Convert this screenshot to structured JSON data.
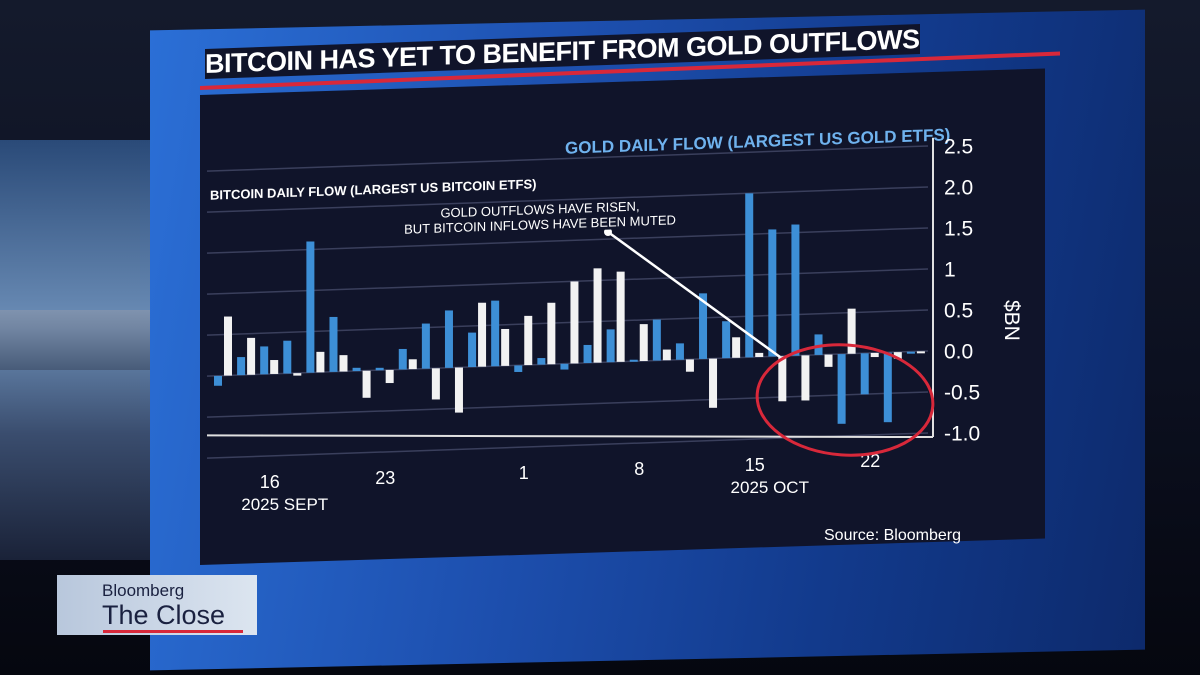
{
  "broadcast": {
    "logo_line1": "Bloomberg",
    "logo_line2": "The Close"
  },
  "colors": {
    "gold": "#3d8fd6",
    "bitcoin": "#f2f2f2",
    "accent_red": "#d8283a"
  },
  "chart_data": {
    "type": "bar",
    "title": "BITCOIN HAS YET TO BENEFIT FROM GOLD OUTFLOWS",
    "ylabel": "$BN",
    "ylim": [
      -1.0,
      2.5
    ],
    "yticks": [
      "2.5",
      "2.0",
      "1.5",
      "1",
      "0.5",
      "0.0",
      "-0.5",
      "-1.0"
    ],
    "ytick_values": [
      2.5,
      2.0,
      1.5,
      1,
      0.5,
      0,
      -0.5,
      -1.0
    ],
    "grid": true,
    "legend": "top",
    "series": [
      {
        "name": "BITCOIN DAILY FLOW (LARGEST US BITCOIN ETFS)",
        "values": [
          0.72,
          0.45,
          0.17,
          -0.03,
          0.25,
          0.2,
          -0.33,
          -0.16,
          0.12,
          -0.38,
          -0.55,
          0.78,
          0.45,
          0.6,
          0.75,
          1.0,
          1.15,
          1.1,
          0.45,
          0.13,
          -0.15,
          -0.6,
          0.25,
          0.05,
          -0.55,
          -0.55,
          -0.15,
          0.55,
          -0.05,
          -0.08,
          -0.02
        ]
      },
      {
        "name": "GOLD DAILY FLOW (LARGEST US GOLD ETFS)",
        "values": [
          -0.12,
          0.22,
          0.34,
          0.4,
          1.6,
          0.67,
          0.04,
          0.03,
          0.25,
          0.55,
          0.7,
          0.42,
          0.8,
          -0.08,
          0.08,
          -0.07,
          0.22,
          0.4,
          0.02,
          0.5,
          0.2,
          0.8,
          0.45,
          2.0,
          1.55,
          1.6,
          0.25,
          -0.85,
          -0.5,
          -0.85,
          -0.02
        ]
      }
    ],
    "xticks": [
      {
        "label": "16",
        "sub": "2025 SEPT",
        "day_index": 2
      },
      {
        "label": "23",
        "sub": "",
        "day_index": 7
      },
      {
        "label": "1",
        "sub": "",
        "day_index": 13
      },
      {
        "label": "8",
        "sub": "",
        "day_index": 18
      },
      {
        "label": "15",
        "sub": "2025 OCT",
        "day_index": 23
      },
      {
        "label": "22",
        "sub": "",
        "day_index": 28
      }
    ],
    "annotation": {
      "line1": "GOLD OUTFLOWS HAVE RISEN,",
      "line2": "BUT BITCOIN INFLOWS HAVE BEEN MUTED"
    },
    "source": "Source: Bloomberg"
  }
}
